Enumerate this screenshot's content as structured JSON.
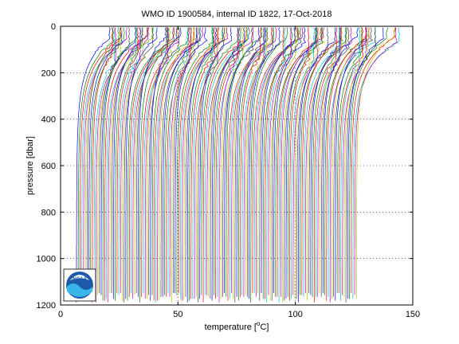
{
  "chart_data": {
    "type": "line",
    "title": "WMO ID 1900584, internal ID 1822, 17-Oct-2018",
    "xlabel": "temperature [",
    "xlabel_sup": "o",
    "xlabel_unit": "C]",
    "ylabel": "pressure [dbar]",
    "xlim": [
      0,
      150
    ],
    "ylim": [
      1200,
      0
    ],
    "y_reversed": true,
    "x_ticks": [
      "0",
      "50",
      "100",
      "150"
    ],
    "y_ticks": [
      "0",
      "200",
      "400",
      "600",
      "800",
      "1000",
      "1200"
    ],
    "grid": "dotted",
    "profile_count": 160,
    "profile_offset_start": 2.5,
    "profile_offset_step": 0.75,
    "series_colors": [
      "#0000ff",
      "#008000",
      "#ff0000",
      "#00bfbf",
      "#bf00bf",
      "#bfbf00",
      "#404040"
    ],
    "logo": {
      "name": "NOAA",
      "label": "NOAA"
    }
  }
}
